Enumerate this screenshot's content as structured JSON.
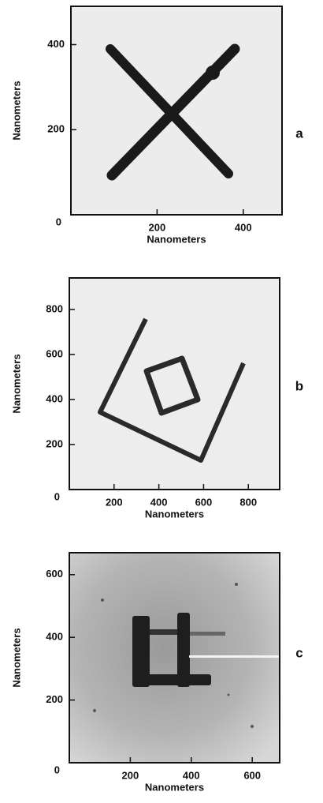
{
  "panels": [
    {
      "label": "a",
      "x_label": "Nanometers",
      "y_label": "Nanometers",
      "origin": 0,
      "xlim": [
        0,
        490
      ],
      "ylim": [
        0,
        490
      ],
      "xticks": [
        200,
        400
      ],
      "yticks": [
        200,
        400
      ]
    },
    {
      "label": "b",
      "x_label": "Nanometers",
      "y_label": "Nanometers",
      "origin": 0,
      "xlim": [
        0,
        940
      ],
      "ylim": [
        0,
        940
      ],
      "xticks": [
        200,
        400,
        600,
        800
      ],
      "yticks": [
        200,
        400,
        600,
        800
      ]
    },
    {
      "label": "c",
      "x_label": "Nanometers",
      "y_label": "Nanometers",
      "origin": 0,
      "xlim": [
        0,
        690
      ],
      "ylim": [
        0,
        670
      ],
      "xticks": [
        200,
        400,
        600
      ],
      "yticks": [
        200,
        400,
        600
      ]
    }
  ]
}
